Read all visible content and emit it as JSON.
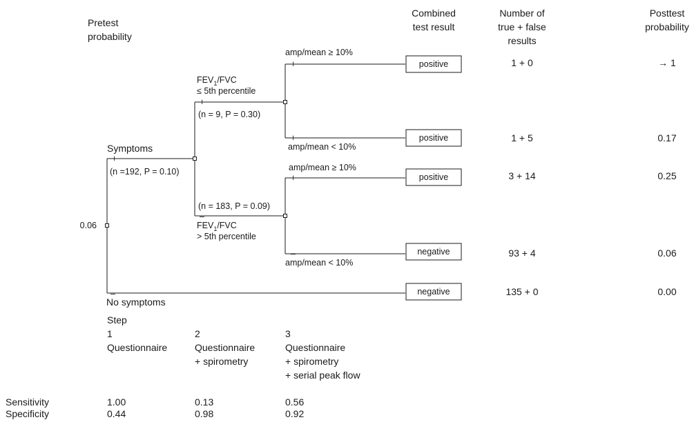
{
  "headers": {
    "pretest_l1": "Pretest",
    "pretest_l2": "probability",
    "combined_l1": "Combined",
    "combined_l2": "test result",
    "number_l1": "Number of",
    "number_l2": "true + false",
    "number_l3": "results",
    "posttest_l1": "Posttest",
    "posttest_l2": "probability"
  },
  "root": {
    "value": "0.06"
  },
  "branches": {
    "symptoms_label": "Symptoms",
    "symptoms_sign": "+",
    "symptoms_n": "(n =192, P = 0.10)",
    "no_symptoms_label": "No symptoms",
    "no_symptoms_sign": "–",
    "fev_low_l1": "FEV",
    "fev_low_sub": "1",
    "fev_low_l1_rest": "/FVC",
    "fev_low_l2": "≤ 5th percentile",
    "fev_low_sign": "+",
    "fev_low_n": "(n = 9, P = 0.30)",
    "fev_high_n": "(n = 183, P = 0.09)",
    "fev_high_sign": "–",
    "fev_high_l1": "FEV",
    "fev_high_sub": "1",
    "fev_high_l1_rest": "/FVC",
    "fev_high_l2": "> 5th percentile",
    "amp_ge_1": "amp/mean ≥ 10%",
    "amp_ge_1_sign": "+",
    "amp_lt_1": "amp/mean < 10%",
    "amp_lt_1_sign": "+",
    "amp_ge_2": "amp/mean ≥ 10%",
    "amp_ge_2_sign": "+",
    "amp_lt_2": "amp/mean < 10%",
    "amp_lt_2_sign": "–"
  },
  "outcomes": [
    {
      "result": "positive",
      "counts": "1 + 0",
      "posttest": "→ 1"
    },
    {
      "result": "positive",
      "counts": "1 + 5",
      "posttest": "0.17"
    },
    {
      "result": "positive",
      "counts": "3 + 14",
      "posttest": "0.25"
    },
    {
      "result": "negative",
      "counts": "93 + 4",
      "posttest": "0.06"
    },
    {
      "result": "negative",
      "counts": "135 + 0",
      "posttest": "0.00"
    }
  ],
  "steps": {
    "title": "Step",
    "s1_num": "1",
    "s1_l1": "Questionnaire",
    "s2_num": "2",
    "s2_l1": "Questionnaire",
    "s2_l2": "+ spirometry",
    "s3_num": "3",
    "s3_l1": "Questionnaire",
    "s3_l2": "+ spirometry",
    "s3_l3": "+ serial peak flow"
  },
  "metrics": {
    "sensitivity_label": "Sensitivity",
    "specificity_label": "Specificity",
    "sensitivity": [
      "1.00",
      "0.13",
      "0.56"
    ],
    "specificity": [
      "0.44",
      "0.98",
      "0.92"
    ]
  }
}
